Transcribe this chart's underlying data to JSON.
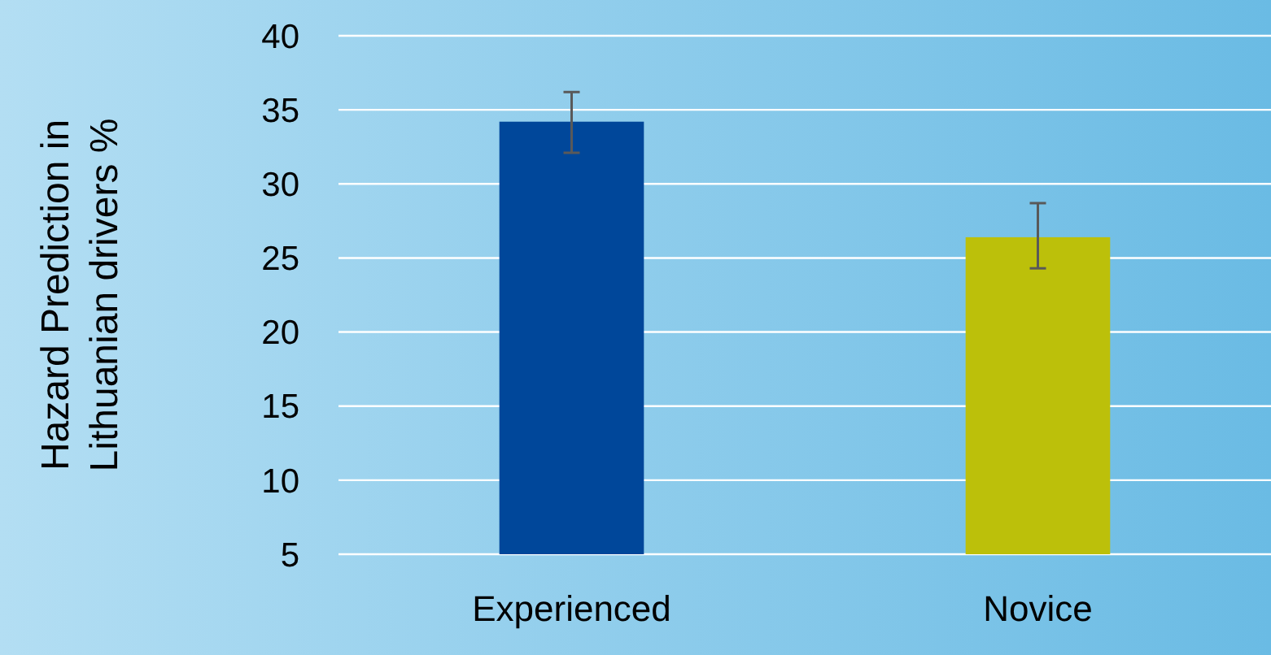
{
  "chart_data": {
    "type": "bar",
    "ylabel": "Hazard Prediction in Lithuanian drivers %",
    "categories": [
      "Experienced",
      "Novice"
    ],
    "values": [
      34.2,
      26.4
    ],
    "colors": [
      "#00479a",
      "#bcc00a"
    ],
    "errors": [
      [
        32.1,
        36.2
      ],
      [
        24.3,
        28.7
      ]
    ],
    "ylim": [
      5,
      40
    ],
    "yticks": [
      5,
      10,
      15,
      20,
      25,
      30,
      35,
      40
    ],
    "grid": "y"
  }
}
